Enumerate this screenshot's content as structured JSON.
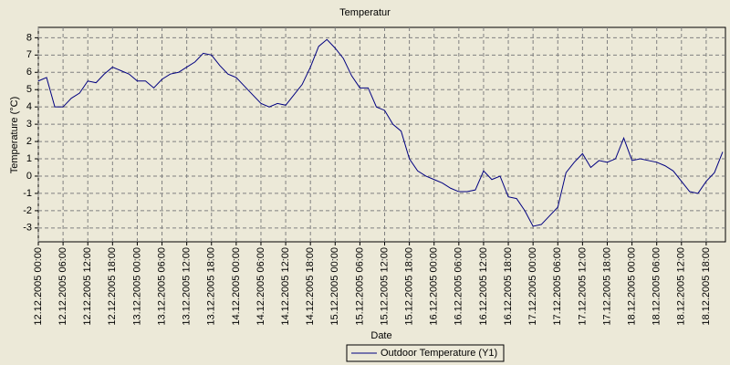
{
  "chart_data": {
    "type": "line",
    "title": "Temperatur",
    "x_label": "Date",
    "y_label": "Temperature (°C)",
    "x": [
      "12.12.2005 00:00",
      "12.12.2005 02:00",
      "12.12.2005 04:00",
      "12.12.2005 06:00",
      "12.12.2005 08:00",
      "12.12.2005 10:00",
      "12.12.2005 12:00",
      "12.12.2005 14:00",
      "12.12.2005 16:00",
      "12.12.2005 18:00",
      "12.12.2005 20:00",
      "12.12.2005 22:00",
      "13.12.2005 00:00",
      "13.12.2005 02:00",
      "13.12.2005 04:00",
      "13.12.2005 06:00",
      "13.12.2005 08:00",
      "13.12.2005 10:00",
      "13.12.2005 12:00",
      "13.12.2005 14:00",
      "13.12.2005 16:00",
      "13.12.2005 18:00",
      "13.12.2005 20:00",
      "13.12.2005 22:00",
      "14.12.2005 00:00",
      "14.12.2005 02:00",
      "14.12.2005 04:00",
      "14.12.2005 06:00",
      "14.12.2005 08:00",
      "14.12.2005 10:00",
      "14.12.2005 12:00",
      "14.12.2005 14:00",
      "14.12.2005 16:00",
      "14.12.2005 18:00",
      "14.12.2005 20:00",
      "14.12.2005 22:00",
      "15.12.2005 00:00",
      "15.12.2005 02:00",
      "15.12.2005 04:00",
      "15.12.2005 06:00",
      "15.12.2005 08:00",
      "15.12.2005 10:00",
      "15.12.2005 12:00",
      "15.12.2005 14:00",
      "15.12.2005 16:00",
      "15.12.2005 18:00",
      "15.12.2005 20:00",
      "15.12.2005 22:00",
      "16.12.2005 00:00",
      "16.12.2005 02:00",
      "16.12.2005 04:00",
      "16.12.2005 06:00",
      "16.12.2005 08:00",
      "16.12.2005 10:00",
      "16.12.2005 12:00",
      "16.12.2005 14:00",
      "16.12.2005 16:00",
      "16.12.2005 18:00",
      "16.12.2005 20:00",
      "16.12.2005 22:00",
      "17.12.2005 00:00",
      "17.12.2005 02:00",
      "17.12.2005 04:00",
      "17.12.2005 06:00",
      "17.12.2005 08:00",
      "17.12.2005 10:00",
      "17.12.2005 12:00",
      "17.12.2005 14:00",
      "17.12.2005 16:00",
      "17.12.2005 18:00",
      "17.12.2005 20:00",
      "17.12.2005 22:00",
      "18.12.2005 00:00",
      "18.12.2005 02:00",
      "18.12.2005 04:00",
      "18.12.2005 06:00",
      "18.12.2005 08:00",
      "18.12.2005 10:00",
      "18.12.2005 12:00",
      "18.12.2005 14:00",
      "18.12.2005 16:00",
      "18.12.2005 18:00",
      "18.12.2005 20:00",
      "18.12.2005 22:00"
    ],
    "series": [
      {
        "name": "Outdoor Temperature (Y1)",
        "color": "#000080",
        "values": [
          5.5,
          5.7,
          4.0,
          4.0,
          4.5,
          4.8,
          5.5,
          5.4,
          5.9,
          6.3,
          6.1,
          5.9,
          5.5,
          5.5,
          5.1,
          5.6,
          5.9,
          6.0,
          6.3,
          6.6,
          7.1,
          7.0,
          6.4,
          5.9,
          5.7,
          5.2,
          4.7,
          4.2,
          4.0,
          4.2,
          4.1,
          4.7,
          5.3,
          6.3,
          7.5,
          7.9,
          7.4,
          6.8,
          5.8,
          5.1,
          5.1,
          4.0,
          3.8,
          3.0,
          2.6,
          1.0,
          0.3,
          0.0,
          -0.2,
          -0.4,
          -0.7,
          -0.9,
          -0.9,
          -0.8,
          0.3,
          -0.2,
          0.0,
          -1.2,
          -1.3,
          -2.0,
          -2.9,
          -2.8,
          -2.3,
          -1.8,
          0.2,
          0.8,
          1.3,
          0.5,
          0.9,
          0.8,
          1.0,
          2.2,
          0.9,
          1.0,
          0.9,
          0.8,
          0.6,
          0.3,
          -0.3,
          -0.9,
          -1.0,
          -0.3,
          0.2,
          1.4
        ]
      }
    ],
    "xlim": [
      "12.12.2005 00:00",
      "18.12.2005 22:40"
    ],
    "xticks": [
      "12.12.2005 00:00",
      "12.12.2005 06:00",
      "12.12.2005 12:00",
      "12.12.2005 18:00",
      "13.12.2005 00:00",
      "13.12.2005 06:00",
      "13.12.2005 12:00",
      "13.12.2005 18:00",
      "14.12.2005 00:00",
      "14.12.2005 06:00",
      "14.12.2005 12:00",
      "14.12.2005 18:00",
      "15.12.2005 00:00",
      "15.12.2005 06:00",
      "15.12.2005 12:00",
      "15.12.2005 18:00",
      "16.12.2005 00:00",
      "16.12.2005 06:00",
      "16.12.2005 12:00",
      "16.12.2005 18:00",
      "17.12.2005 00:00",
      "17.12.2005 06:00",
      "17.12.2005 12:00",
      "17.12.2005 18:00",
      "18.12.2005 00:00",
      "18.12.2005 06:00",
      "18.12.2005 12:00",
      "18.12.2005 18:00"
    ],
    "ylim": [
      -3.8,
      8.6
    ],
    "yticks": [
      -3,
      -2,
      -1,
      0,
      1,
      2,
      3,
      4,
      5,
      6,
      7,
      8
    ],
    "grid": true
  }
}
